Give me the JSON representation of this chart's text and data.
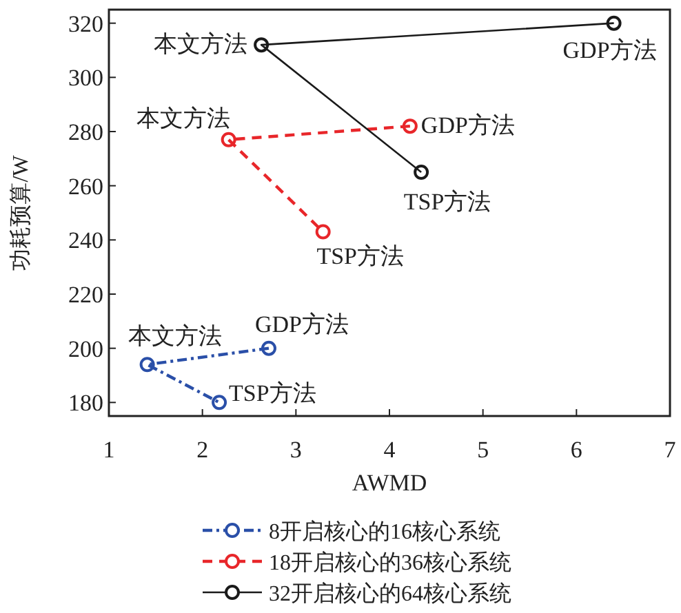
{
  "chart_data": {
    "type": "line",
    "xlabel": "AWMD",
    "ylabel": "功耗预算/W",
    "xlim": [
      1,
      7
    ],
    "xticks": [
      1,
      2,
      3,
      4,
      5,
      6,
      7
    ],
    "ylim": [
      175,
      325
    ],
    "yticks": [
      180,
      200,
      220,
      240,
      260,
      280,
      300,
      320
    ],
    "grid": false,
    "legend": "bottom",
    "marker": "circle",
    "series": [
      {
        "name": "8开启核心的16核心系统",
        "color": "#2a4fa8",
        "line_style": "dashdot",
        "x": [
          2.71,
          1.41,
          2.18
        ],
        "values": [
          200,
          194,
          180
        ]
      },
      {
        "name": "18开启核心的36核心系统",
        "color": "#e8262a",
        "line_style": "dashed",
        "x": [
          4.22,
          2.28,
          3.29
        ],
        "values": [
          282,
          277,
          243
        ]
      },
      {
        "name": "32开启核心的64核心系统",
        "color": "#1a1a1a",
        "line_style": "solid",
        "x": [
          6.4,
          2.63,
          4.34
        ],
        "values": [
          320,
          312,
          265
        ]
      }
    ],
    "annotations": [
      {
        "text": "GDP方法",
        "x": 2.71,
        "y": 200
      },
      {
        "text": "本文方法",
        "x": 1.41,
        "y": 194
      },
      {
        "text": "TSP方法",
        "x": 2.18,
        "y": 180
      },
      {
        "text": "GDP方法",
        "x": 4.22,
        "y": 282
      },
      {
        "text": "本文方法",
        "x": 2.28,
        "y": 277
      },
      {
        "text": "TSP方法",
        "x": 3.29,
        "y": 243
      },
      {
        "text": "GDP方法",
        "x": 6.4,
        "y": 320
      },
      {
        "text": "本文方法",
        "x": 2.63,
        "y": 312
      },
      {
        "text": "TSP方法",
        "x": 4.34,
        "y": 265
      }
    ]
  }
}
